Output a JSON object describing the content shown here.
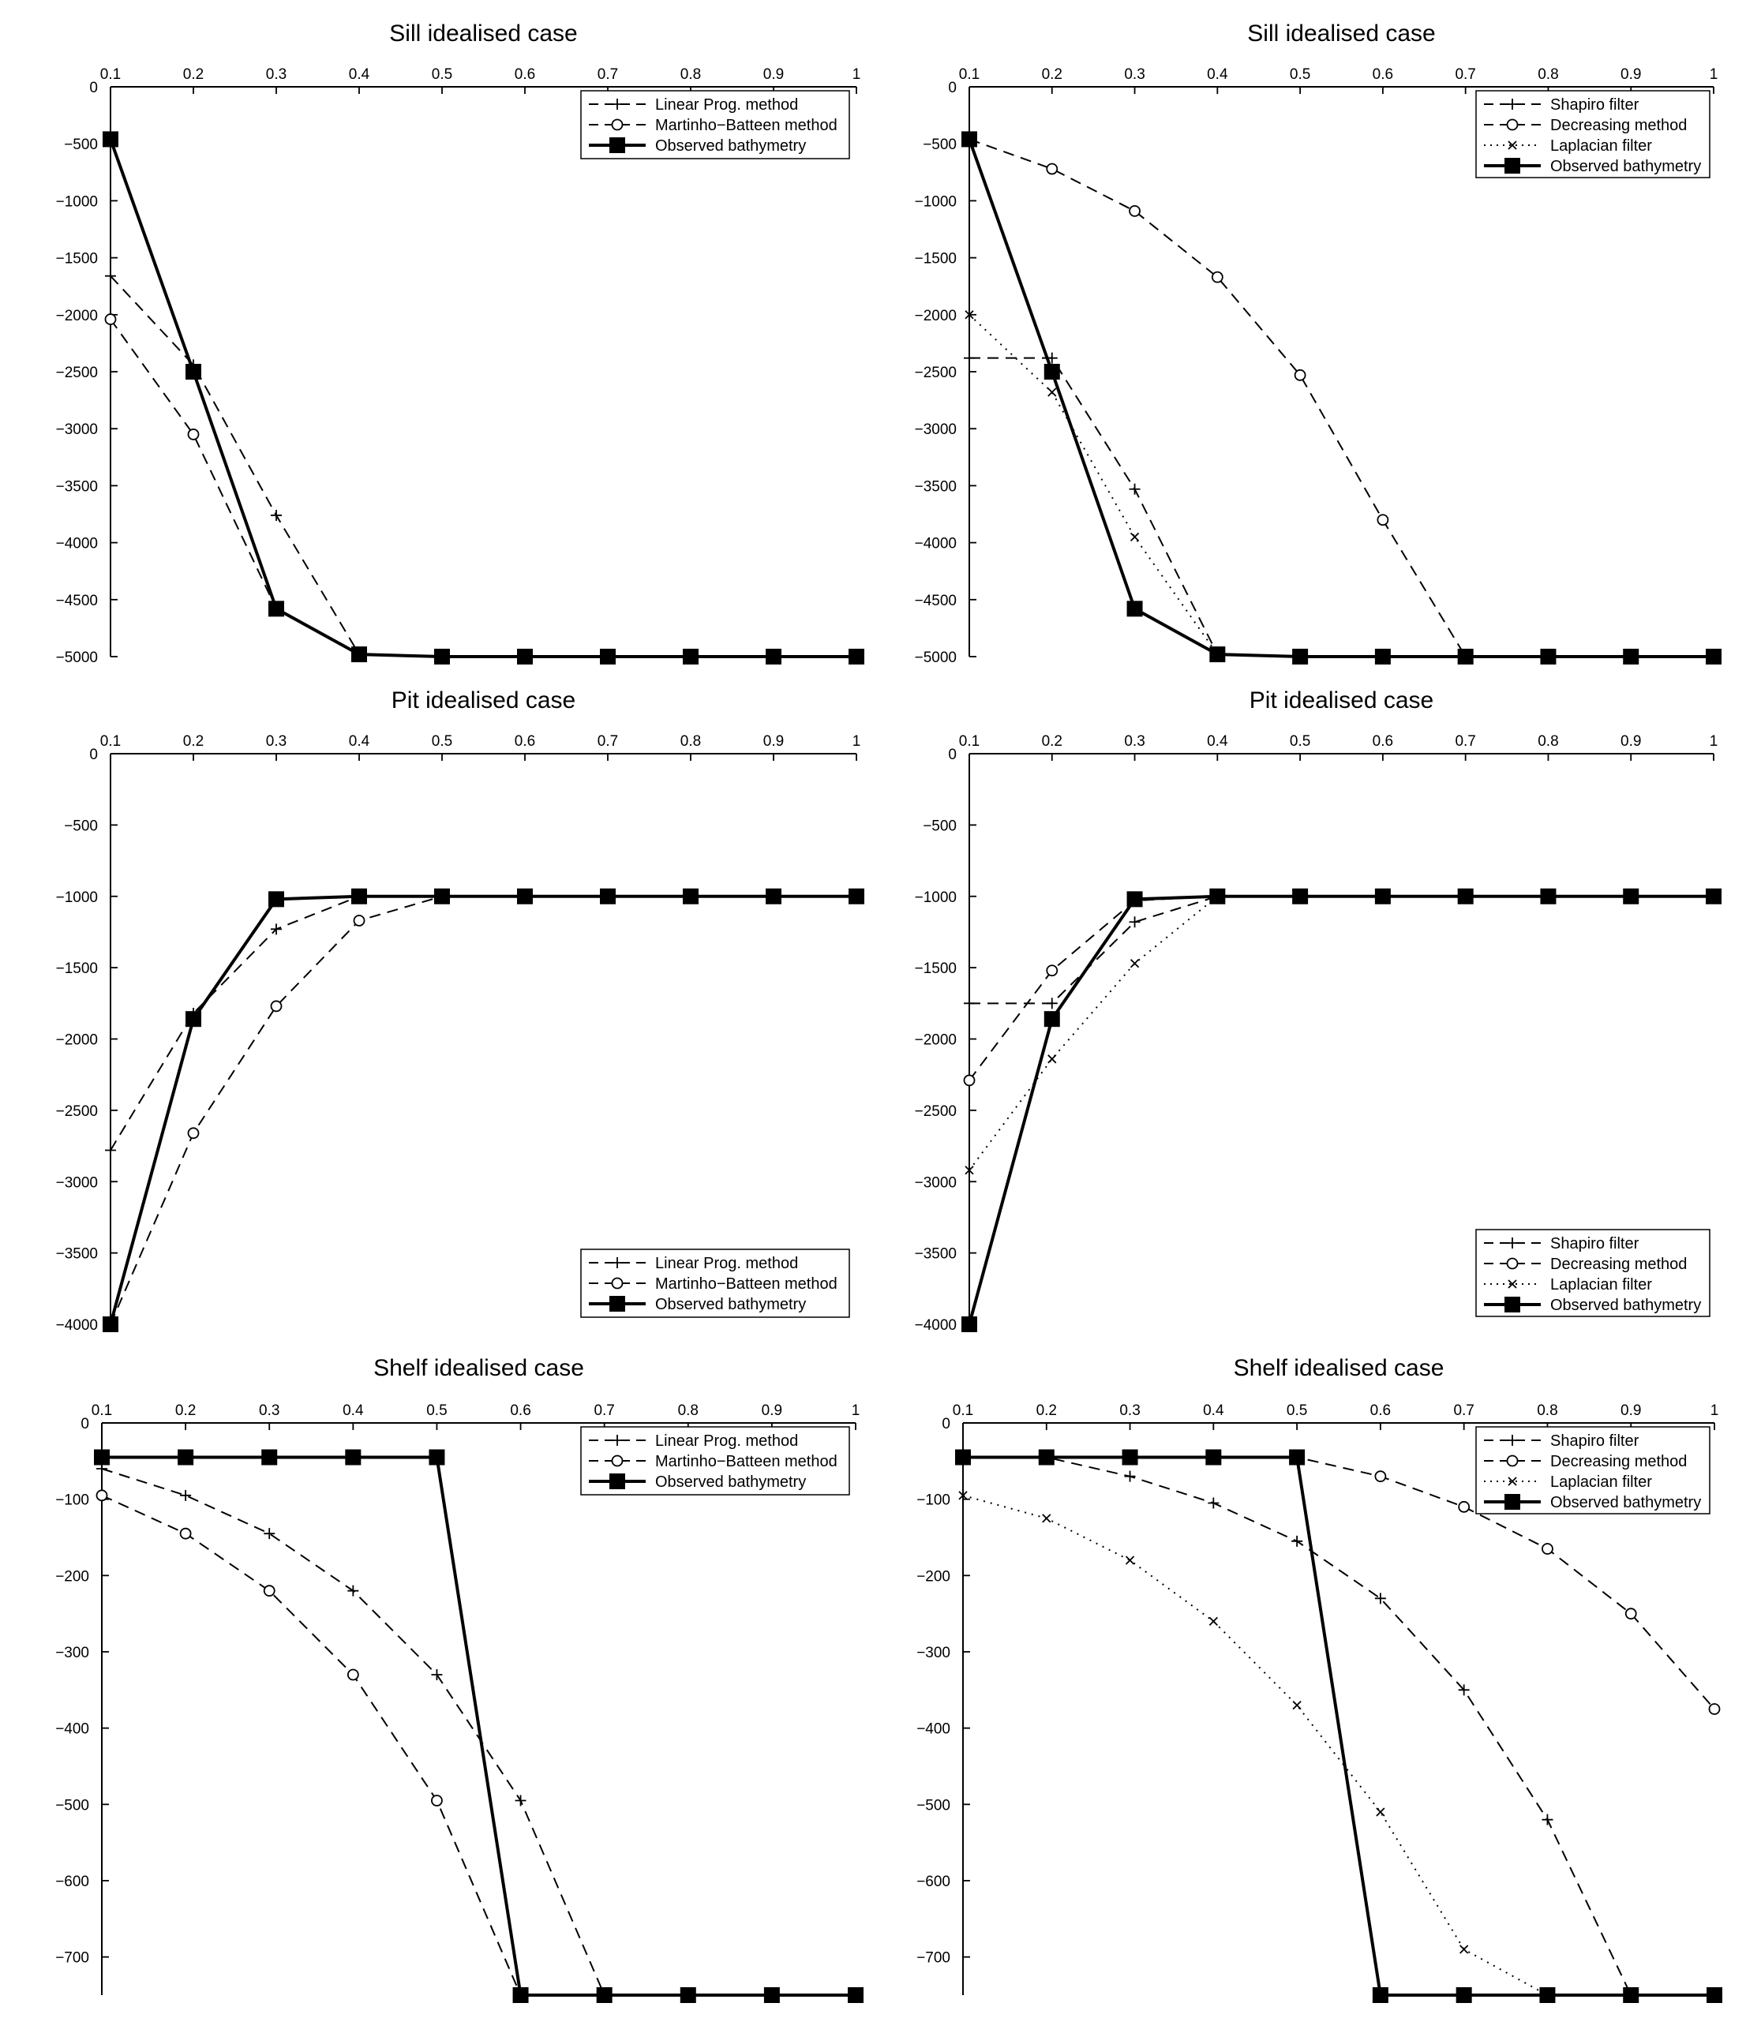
{
  "chart_data": [
    {
      "type": "line",
      "title": "Sill idealised case",
      "xlabel": "",
      "ylabel": "",
      "xlim": [
        0.1,
        1
      ],
      "ylim": [
        -5000,
        0
      ],
      "x_ticks": [
        "0.1",
        "0.2",
        "0.3",
        "0.4",
        "0.5",
        "0.6",
        "0.7",
        "0.8",
        "0.9",
        "1"
      ],
      "y_ticks": [
        {
          "v": 0,
          "label": "0"
        },
        {
          "v": -500,
          "label": "-500"
        },
        {
          "v": -1000,
          "label": "-1000"
        },
        {
          "v": -1500,
          "label": "-1500"
        },
        {
          "v": -2000,
          "label": "-2000"
        },
        {
          "v": -2500,
          "label": "-2500"
        },
        {
          "v": -3000,
          "label": "-3000"
        },
        {
          "v": -3500,
          "label": "-3500"
        },
        {
          "v": -4000,
          "label": "-4000"
        },
        {
          "v": -4500,
          "label": "-4500"
        },
        {
          "v": -5000,
          "label": "-5000"
        }
      ],
      "legend_position": "top-right",
      "grid": false,
      "x": [
        0.1,
        0.2,
        0.3,
        0.4,
        0.5,
        0.6,
        0.7,
        0.8,
        0.9,
        1.0
      ],
      "series": [
        {
          "name": "Linear Prog. method",
          "style": "dashed",
          "marker": "plus",
          "values": [
            -1660,
            -2440,
            -3760,
            -4980,
            -5000,
            -5000,
            -5000,
            -5000,
            -5000,
            -5000
          ]
        },
        {
          "name": "Martinho−Batteen method",
          "style": "dashed",
          "marker": "circle",
          "values": [
            -2040,
            -3050,
            -4580,
            -4980,
            -5000,
            -5000,
            -5000,
            -5000,
            -5000,
            -5000
          ]
        },
        {
          "name": "Observed bathymetry",
          "style": "solid",
          "marker": "square",
          "values": [
            -460,
            -2500,
            -4580,
            -4980,
            -5000,
            -5000,
            -5000,
            -5000,
            -5000,
            -5000
          ]
        }
      ]
    },
    {
      "type": "line",
      "title": "Sill idealised case",
      "xlabel": "",
      "ylabel": "",
      "xlim": [
        0.1,
        1
      ],
      "ylim": [
        -5000,
        0
      ],
      "x_ticks": [
        "0.1",
        "0.2",
        "0.3",
        "0.4",
        "0.5",
        "0.6",
        "0.7",
        "0.8",
        "0.9",
        "1"
      ],
      "y_ticks": [
        {
          "v": 0,
          "label": "0"
        },
        {
          "v": -500,
          "label": "-500"
        },
        {
          "v": -1000,
          "label": "-1000"
        },
        {
          "v": -1500,
          "label": "-1500"
        },
        {
          "v": -2000,
          "label": "-2000"
        },
        {
          "v": -2500,
          "label": "-2500"
        },
        {
          "v": -3000,
          "label": "-3000"
        },
        {
          "v": -3500,
          "label": "-3500"
        },
        {
          "v": -4000,
          "label": "-4000"
        },
        {
          "v": -4500,
          "label": "-4500"
        },
        {
          "v": -5000,
          "label": "-5000"
        }
      ],
      "legend_position": "top-right",
      "grid": false,
      "x": [
        0.1,
        0.2,
        0.3,
        0.4,
        0.5,
        0.6,
        0.7,
        0.8,
        0.9,
        1.0
      ],
      "series": [
        {
          "name": "Shapiro filter",
          "style": "dashed",
          "marker": "plus",
          "values": [
            -2380,
            -2380,
            -3530,
            -4980,
            -5000,
            -5000,
            -5000,
            -5000,
            -5000,
            -5000
          ]
        },
        {
          "name": "Decreasing method",
          "style": "dashed",
          "marker": "circle",
          "values": [
            -460,
            -720,
            -1090,
            -1670,
            -2530,
            -3800,
            -5000,
            -5000,
            -5000,
            -5000
          ]
        },
        {
          "name": "Laplacian filter",
          "style": "dotted",
          "marker": "cross",
          "values": [
            -2000,
            -2680,
            -3950,
            -4980,
            -5000,
            -5000,
            -5000,
            -5000,
            -5000,
            -5000
          ]
        },
        {
          "name": "Observed bathymetry",
          "style": "solid",
          "marker": "square",
          "values": [
            -460,
            -2500,
            -4580,
            -4980,
            -5000,
            -5000,
            -5000,
            -5000,
            -5000,
            -5000
          ]
        }
      ]
    },
    {
      "type": "line",
      "title": "Pit idealised case",
      "xlabel": "",
      "ylabel": "",
      "xlim": [
        0.1,
        1
      ],
      "ylim": [
        -4000,
        0
      ],
      "x_ticks": [
        "0.1",
        "0.2",
        "0.3",
        "0.4",
        "0.5",
        "0.6",
        "0.7",
        "0.8",
        "0.9",
        "1"
      ],
      "y_ticks": [
        {
          "v": 0,
          "label": "0"
        },
        {
          "v": -500,
          "label": "-500"
        },
        {
          "v": -1000,
          "label": "-1000"
        },
        {
          "v": -1500,
          "label": "-1500"
        },
        {
          "v": -2000,
          "label": "-2000"
        },
        {
          "v": -2500,
          "label": "-2500"
        },
        {
          "v": -3000,
          "label": "-3000"
        },
        {
          "v": -3500,
          "label": "-3500"
        },
        {
          "v": -4000,
          "label": "-4000"
        }
      ],
      "legend_position": "bottom-right",
      "grid": false,
      "x": [
        0.1,
        0.2,
        0.3,
        0.4,
        0.5,
        0.6,
        0.7,
        0.8,
        0.9,
        1.0
      ],
      "series": [
        {
          "name": "Linear Prog. method",
          "style": "dashed",
          "marker": "plus",
          "values": [
            -2780,
            -1820,
            -1230,
            -1000,
            -1000,
            -1000,
            -1000,
            -1000,
            -1000,
            -1000
          ]
        },
        {
          "name": "Martinho−Batteen method",
          "style": "dashed",
          "marker": "circle",
          "values": [
            -4000,
            -2660,
            -1770,
            -1170,
            -1000,
            -1000,
            -1000,
            -1000,
            -1000,
            -1000
          ]
        },
        {
          "name": "Observed bathymetry",
          "style": "solid",
          "marker": "square",
          "values": [
            -4000,
            -1860,
            -1020,
            -1000,
            -1000,
            -1000,
            -1000,
            -1000,
            -1000,
            -1000
          ]
        }
      ]
    },
    {
      "type": "line",
      "title": "Pit idealised case",
      "xlabel": "",
      "ylabel": "",
      "xlim": [
        0.1,
        1
      ],
      "ylim": [
        -4000,
        0
      ],
      "x_ticks": [
        "0.1",
        "0.2",
        "0.3",
        "0.4",
        "0.5",
        "0.6",
        "0.7",
        "0.8",
        "0.9",
        "1"
      ],
      "y_ticks": [
        {
          "v": 0,
          "label": "0"
        },
        {
          "v": -500,
          "label": "-500"
        },
        {
          "v": -1000,
          "label": "-1000"
        },
        {
          "v": -1500,
          "label": "-1500"
        },
        {
          "v": -2000,
          "label": "-2000"
        },
        {
          "v": -2500,
          "label": "-2500"
        },
        {
          "v": -3000,
          "label": "-3000"
        },
        {
          "v": -3500,
          "label": "-3500"
        },
        {
          "v": -4000,
          "label": "-4000"
        }
      ],
      "legend_position": "bottom-right",
      "grid": false,
      "x": [
        0.1,
        0.2,
        0.3,
        0.4,
        0.5,
        0.6,
        0.7,
        0.8,
        0.9,
        1.0
      ],
      "series": [
        {
          "name": "Shapiro filter",
          "style": "dashed",
          "marker": "plus",
          "values": [
            -1750,
            -1750,
            -1180,
            -1000,
            -1000,
            -1000,
            -1000,
            -1000,
            -1000,
            -1000
          ]
        },
        {
          "name": "Decreasing method",
          "style": "dashed",
          "marker": "circle",
          "values": [
            -2290,
            -1520,
            -1030,
            -1000,
            -1000,
            -1000,
            -1000,
            -1000,
            -1000,
            -1000
          ]
        },
        {
          "name": "Laplacian filter",
          "style": "dotted",
          "marker": "cross",
          "values": [
            -2920,
            -2140,
            -1470,
            -1000,
            -1000,
            -1000,
            -1000,
            -1000,
            -1000,
            -1000
          ]
        },
        {
          "name": "Observed bathymetry",
          "style": "solid",
          "marker": "square",
          "values": [
            -4000,
            -1860,
            -1020,
            -1000,
            -1000,
            -1000,
            -1000,
            -1000,
            -1000,
            -1000
          ]
        }
      ]
    },
    {
      "type": "line",
      "title": "Shelf idealised case",
      "xlabel": "",
      "ylabel": "",
      "xlim": [
        0.1,
        1
      ],
      "ylim": [
        -750,
        0
      ],
      "x_ticks": [
        "0.1",
        "0.2",
        "0.3",
        "0.4",
        "0.5",
        "0.6",
        "0.7",
        "0.8",
        "0.9",
        "1"
      ],
      "y_ticks": [
        {
          "v": 0,
          "label": "0"
        },
        {
          "v": -100,
          "label": "-100"
        },
        {
          "v": -200,
          "label": "-200"
        },
        {
          "v": -300,
          "label": "-300"
        },
        {
          "v": -400,
          "label": "-400"
        },
        {
          "v": -500,
          "label": "-500"
        },
        {
          "v": -600,
          "label": "-600"
        },
        {
          "v": -700,
          "label": "-700"
        }
      ],
      "legend_position": "top-right",
      "grid": false,
      "x": [
        0.1,
        0.2,
        0.3,
        0.4,
        0.5,
        0.6,
        0.7,
        0.8,
        0.9,
        1.0
      ],
      "series": [
        {
          "name": "Linear Prog. method",
          "style": "dashed",
          "marker": "plus",
          "values": [
            -60,
            -95,
            -145,
            -220,
            -330,
            -495,
            -750,
            -750,
            -750,
            -750
          ]
        },
        {
          "name": "Martinho−Batteen method",
          "style": "dashed",
          "marker": "circle",
          "values": [
            -95,
            -145,
            -220,
            -330,
            -495,
            -750,
            -750,
            -750,
            -750,
            -750
          ]
        },
        {
          "name": "Observed bathymetry",
          "style": "solid",
          "marker": "square",
          "values": [
            -45,
            -45,
            -45,
            -45,
            -45,
            -750,
            -750,
            -750,
            -750,
            -750
          ]
        }
      ]
    },
    {
      "type": "line",
      "title": "Shelf idealised case",
      "xlabel": "",
      "ylabel": "",
      "xlim": [
        0.1,
        1
      ],
      "ylim": [
        -750,
        0
      ],
      "x_ticks": [
        "0.1",
        "0.2",
        "0.3",
        "0.4",
        "0.5",
        "0.6",
        "0.7",
        "0.8",
        "0.9",
        "1"
      ],
      "y_ticks": [
        {
          "v": 0,
          "label": "0"
        },
        {
          "v": -100,
          "label": "-100"
        },
        {
          "v": -200,
          "label": "-200"
        },
        {
          "v": -300,
          "label": "-300"
        },
        {
          "v": -400,
          "label": "-400"
        },
        {
          "v": -500,
          "label": "-500"
        },
        {
          "v": -600,
          "label": "-600"
        },
        {
          "v": -700,
          "label": "-700"
        }
      ],
      "legend_position": "top-right",
      "grid": false,
      "x": [
        0.1,
        0.2,
        0.3,
        0.4,
        0.5,
        0.6,
        0.7,
        0.8,
        0.9,
        1.0
      ],
      "series": [
        {
          "name": "Shapiro filter",
          "style": "dashed",
          "marker": "plus",
          "values": [
            -45,
            -45,
            -70,
            -105,
            -155,
            -230,
            -350,
            -520,
            -750,
            -750
          ]
        },
        {
          "name": "Decreasing method",
          "style": "dashed",
          "marker": "circle",
          "values": [
            -45,
            -45,
            -45,
            -45,
            -45,
            -70,
            -110,
            -165,
            -250,
            -375
          ]
        },
        {
          "name": "Laplacian filter",
          "style": "dotted",
          "marker": "cross",
          "values": [
            -95,
            -125,
            -180,
            -260,
            -370,
            -510,
            -690,
            -750,
            -750,
            -750
          ]
        },
        {
          "name": "Observed bathymetry",
          "style": "solid",
          "marker": "square",
          "values": [
            -45,
            -45,
            -45,
            -45,
            -45,
            -750,
            -750,
            -750,
            -750,
            -750
          ]
        }
      ]
    }
  ]
}
